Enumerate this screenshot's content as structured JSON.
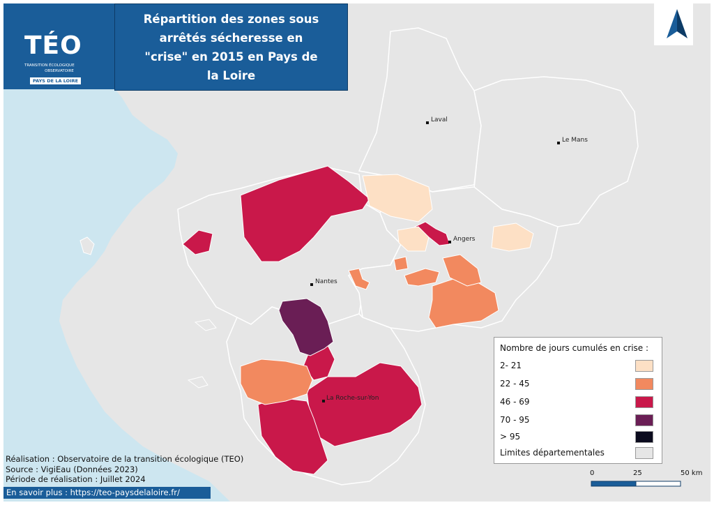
{
  "title": "Répartition des zones sous arrêtés sécheresse en \"crise\" en 2015 en Pays de la Loire",
  "logo": {
    "name": "TÉO",
    "subtitle_line1": "TRANSITION ÉCOLOGIQUE",
    "subtitle_line2": "OBSERVATOIRE",
    "region": "PAYS DE LA LOIRE"
  },
  "cities": [
    {
      "name": "Laval"
    },
    {
      "name": "Le Mans"
    },
    {
      "name": "Angers"
    },
    {
      "name": "Nantes"
    },
    {
      "name": "La Roche-sur-Yon"
    }
  ],
  "legend": {
    "title": "Nombre de jours cumulés en crise :",
    "classes": [
      {
        "label": "2- 21",
        "color": "#fde0c5"
      },
      {
        "label": "22 - 45",
        "color": "#f2895f"
      },
      {
        "label": "46 - 69",
        "color": "#c9184a"
      },
      {
        "label": "70 - 95",
        "color": "#6a1e55"
      },
      {
        "label": "> 95",
        "color": "#0b0b1e"
      }
    ],
    "boundary_label": "Limites départementales",
    "boundary_color": "#e6e6e6"
  },
  "credits": {
    "realisation": "Réalisation : Observatoire de la transition écologique (TEO)",
    "source": "Source : VigiEau (Données 2023)",
    "periode": "Période de réalisation : Juillet 2024"
  },
  "link": "En savoir plus : https://teo-paysdelaloire.fr/",
  "scale": {
    "labels": [
      "0",
      "25",
      "50 km"
    ]
  },
  "colors": {
    "sea": "#cde6f0",
    "land": "#e4e4e4",
    "brand": "#1a5d99"
  },
  "north_arrow": "north-arrow-icon"
}
